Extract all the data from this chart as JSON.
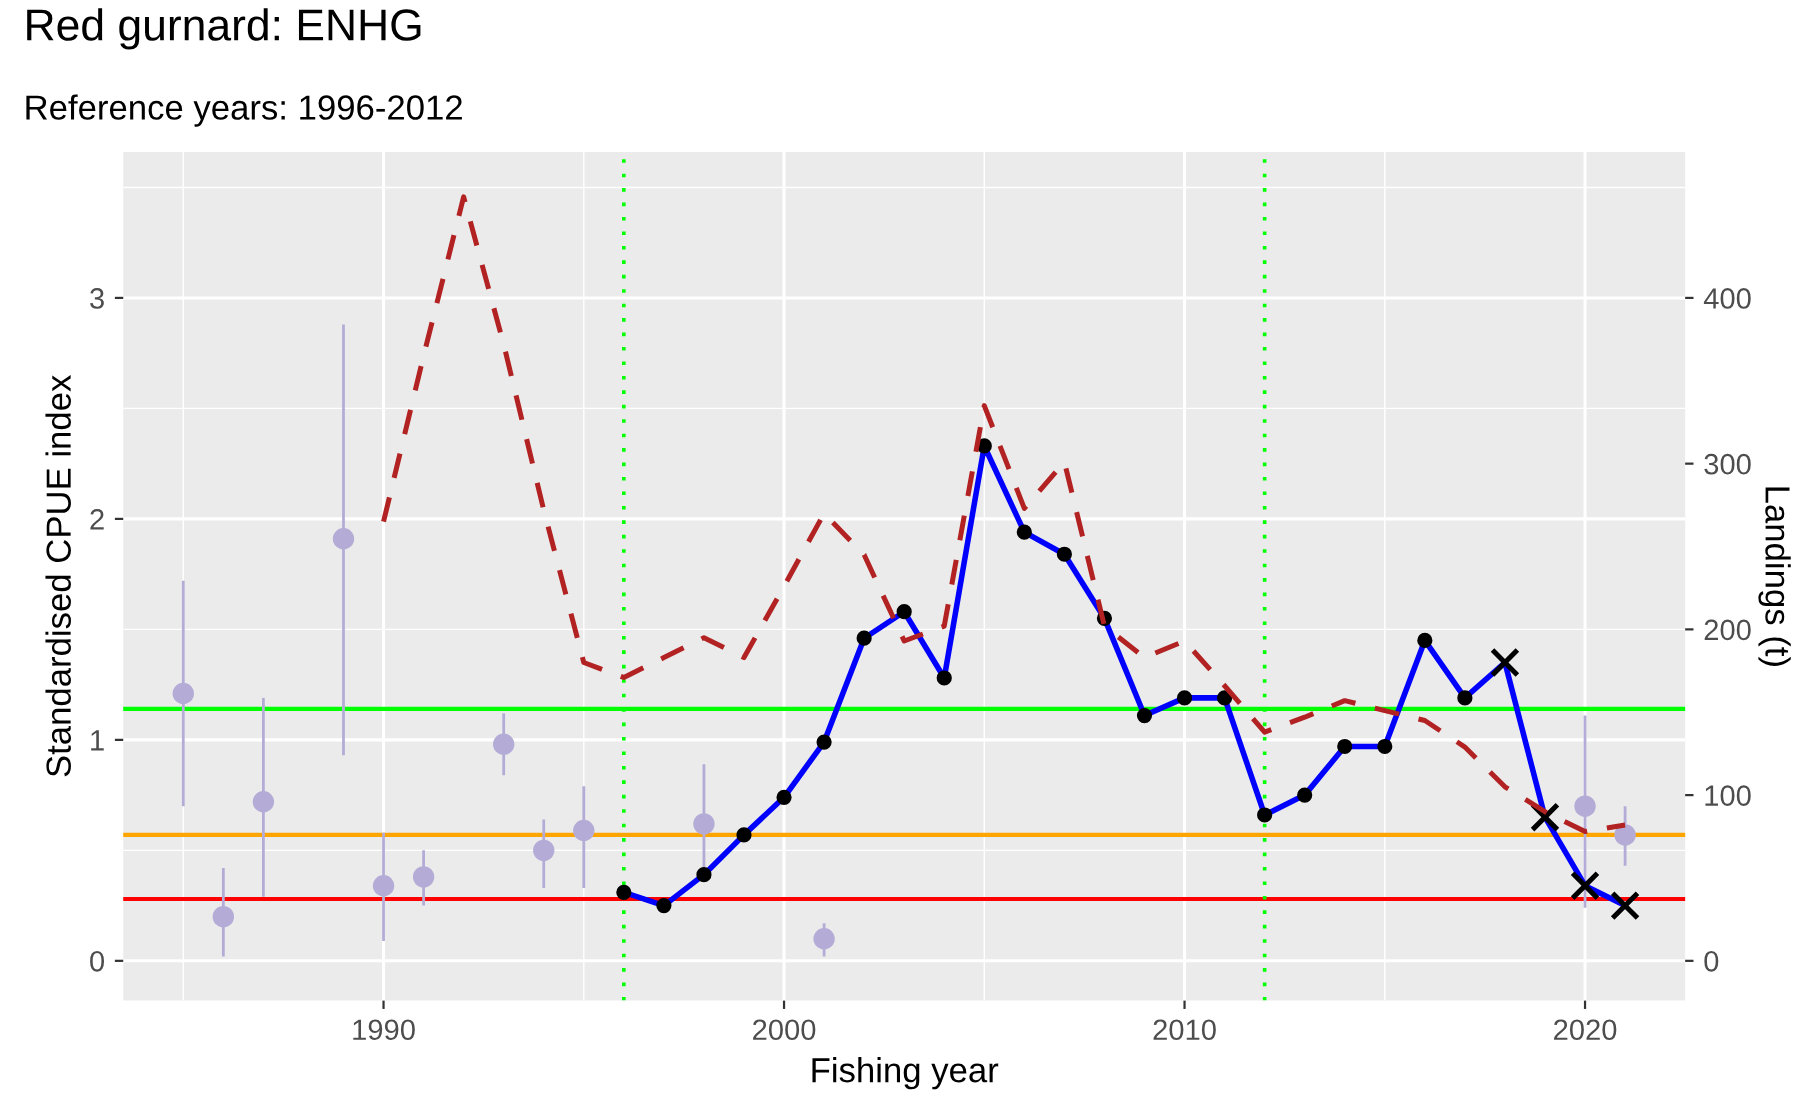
{
  "chart_data": {
    "type": "line",
    "title": "Red gurnard: ENHG",
    "subtitle": "Reference years: 1996-2012",
    "xlabel": "Fishing year",
    "ylabel": "Standardised CPUE index",
    "y2label": "Landings (t)",
    "xlim": [
      1983.5,
      2022.5
    ],
    "xticks": [
      {
        "value": 1985,
        "label": null
      },
      1990,
      {
        "value": 1995,
        "label": null
      },
      2000,
      {
        "value": 2005,
        "label": null
      },
      2010,
      {
        "value": 2015,
        "label": null
      },
      2020
    ],
    "ylim": [
      -0.18,
      3.66
    ],
    "yticks": [
      0,
      {
        "value": 0.5,
        "label": null
      },
      1,
      {
        "value": 1.5,
        "label": null
      },
      2,
      {
        "value": 2.5,
        "label": null
      },
      3,
      {
        "value": 3.5,
        "label": null
      }
    ],
    "y2lim": [
      -24,
      488
    ],
    "y2ticks": [
      0,
      100,
      200,
      300,
      400
    ],
    "grid": true,
    "legend": false,
    "series": [
      {
        "type": "scatter",
        "color": "#b4acd6",
        "marker": "circle",
        "x": [
          1985,
          1986,
          1987,
          1989,
          1990,
          1991,
          1993,
          1994,
          1995,
          1998,
          2001,
          2020,
          2021
        ],
        "values": [
          1.21,
          0.2,
          0.72,
          1.91,
          0.34,
          0.38,
          0.98,
          0.5,
          0.59,
          0.62,
          0.1,
          0.7,
          0.57
        ],
        "errors": [
          [
            0.7,
            1.72
          ],
          [
            0.02,
            0.42
          ],
          [
            0.29,
            1.19
          ],
          [
            0.93,
            2.88
          ],
          [
            0.09,
            0.58
          ],
          [
            0.25,
            0.5
          ],
          [
            0.84,
            1.12
          ],
          [
            0.33,
            0.64
          ],
          [
            0.33,
            0.79
          ],
          [
            0.39,
            0.89
          ],
          [
            0.02,
            0.17
          ],
          [
            0.24,
            1.11
          ],
          [
            0.43,
            0.7
          ]
        ]
      },
      {
        "type": "line",
        "axis": "y2",
        "color": "#b22222",
        "line_style": "dashed",
        "marker": "none",
        "x": [
          1990,
          1991,
          1992,
          1993,
          1994,
          1995,
          1996,
          1997,
          1998,
          1999,
          2000,
          2001,
          2002,
          2003,
          2004,
          2005,
          2006,
          2007,
          2008,
          2009,
          2010,
          2011,
          2012,
          2013,
          2014,
          2015,
          2016,
          2017,
          2018,
          2019,
          2020,
          2021
        ],
        "values": [
          265,
          365,
          461,
          372,
          272,
          180,
          171,
          183,
          195,
          183,
          226,
          270,
          245,
          193,
          202,
          335,
          273,
          301,
          202,
          183,
          193,
          166,
          138,
          147,
          157,
          151,
          145,
          129,
          105,
          90,
          78,
          82
        ]
      },
      {
        "color": "#0000ff",
        "line_style": "solid",
        "marker": "none",
        "x": [
          1996,
          1997,
          1998,
          1999,
          2000,
          2001,
          2002,
          2003,
          2004,
          2005,
          2006,
          2007,
          2008,
          2009,
          2010,
          2011,
          2012,
          2013,
          2014,
          2015,
          2016,
          2017,
          2018,
          2019,
          2020,
          2021
        ],
        "values": [
          0.31,
          0.25,
          0.39,
          0.57,
          0.74,
          0.99,
          1.46,
          1.58,
          1.28,
          2.33,
          1.94,
          1.84,
          1.55,
          1.11,
          1.19,
          1.19,
          0.66,
          0.75,
          0.97,
          0.97,
          1.45,
          1.19,
          1.35,
          0.65,
          0.34,
          0.25
        ]
      },
      {
        "type": "scatter",
        "color": "#000000",
        "marker": "circle",
        "x": [
          1996,
          1997,
          1998,
          1999,
          2000,
          2001,
          2002,
          2003,
          2004,
          2005,
          2006,
          2007,
          2008,
          2009,
          2010,
          2011,
          2012,
          2013,
          2014,
          2015,
          2016,
          2017
        ],
        "values": [
          0.31,
          0.25,
          0.39,
          0.57,
          0.74,
          0.99,
          1.46,
          1.58,
          1.28,
          2.33,
          1.94,
          1.84,
          1.55,
          1.11,
          1.19,
          1.19,
          0.66,
          0.75,
          0.97,
          0.97,
          1.45,
          1.19
        ]
      },
      {
        "type": "scatter",
        "color": "#000000",
        "marker": "cross",
        "x": [
          2018,
          2019,
          2020,
          2021
        ],
        "values": [
          1.35,
          0.65,
          0.34,
          0.25
        ]
      }
    ],
    "ref_lines": [
      {
        "axis": "y",
        "value": 1.14,
        "color": "#00ff00",
        "line_style": "solid"
      },
      {
        "axis": "y",
        "value": 0.57,
        "color": "#ffa500",
        "line_style": "solid"
      },
      {
        "axis": "y",
        "value": 0.28,
        "color": "#ff0000",
        "line_style": "solid"
      },
      {
        "axis": "x",
        "value": 1996,
        "color": "#00ff00",
        "line_style": "dotted"
      },
      {
        "axis": "x",
        "value": 2012,
        "color": "#00ff00",
        "line_style": "dotted"
      }
    ]
  }
}
